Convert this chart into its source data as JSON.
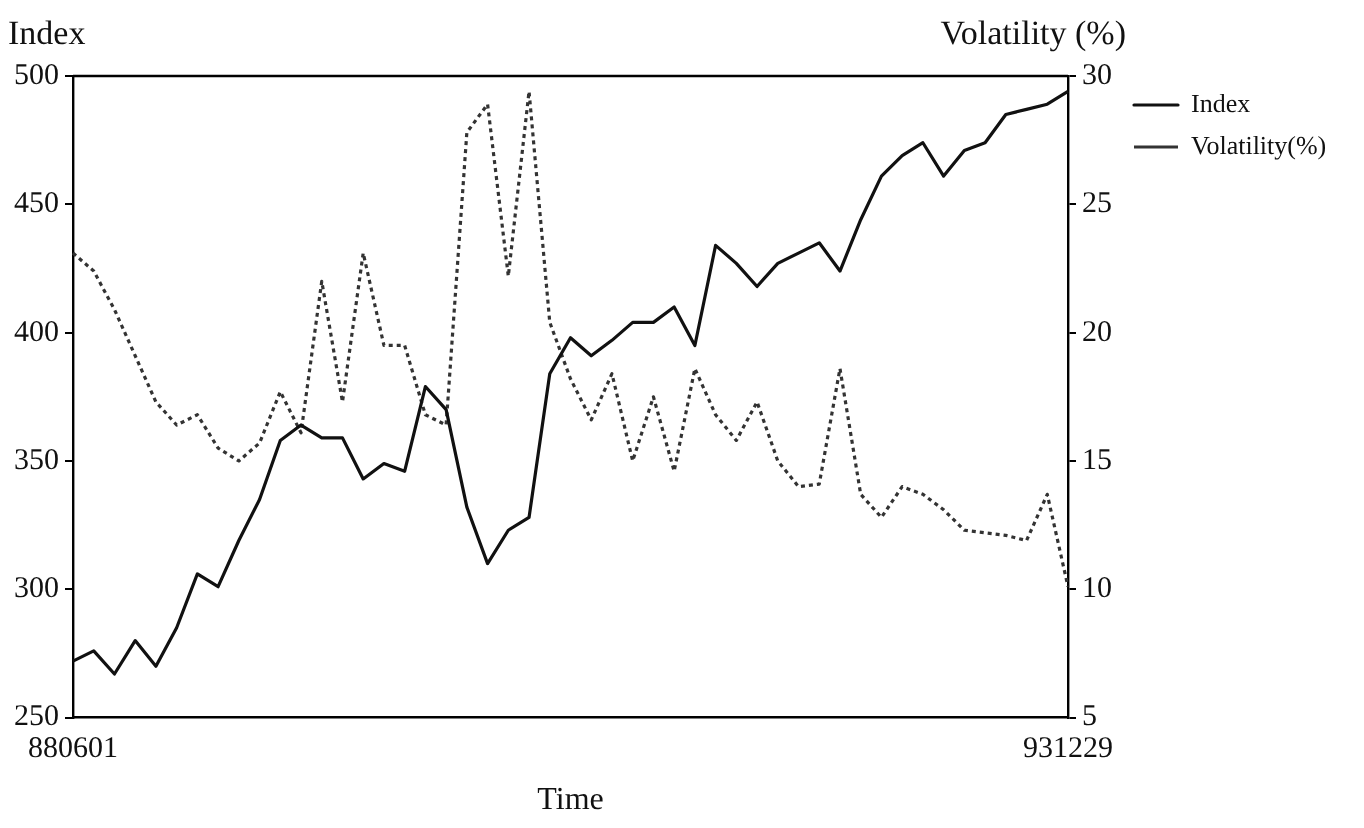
{
  "chart_data": {
    "type": "line",
    "xlabel": "Time",
    "ylabel": "Index",
    "y2label": "Volatility (%)",
    "categories": [
      "880601",
      null,
      null,
      null,
      null,
      null,
      null,
      null,
      null,
      null,
      null,
      null,
      null,
      null,
      null,
      null,
      null,
      null,
      null,
      null,
      null,
      null,
      null,
      null,
      null,
      null,
      null,
      null,
      null,
      null,
      null,
      null,
      null,
      null,
      null,
      null,
      null,
      null,
      null,
      null,
      null,
      null,
      null,
      null,
      null,
      null,
      null,
      null,
      "931229"
    ],
    "ylim": [
      250,
      500
    ],
    "yticks": [
      250,
      300,
      350,
      400,
      450,
      500
    ],
    "y2lim": [
      5,
      30
    ],
    "y2ticks": [
      5,
      10,
      15,
      20,
      25,
      30
    ],
    "grid": false,
    "legend": "right",
    "marker": "none",
    "series": [
      {
        "name": "Index",
        "color": "#111111",
        "line_style": "solid",
        "values": [
          272,
          276,
          267,
          280,
          270,
          285,
          306,
          301,
          319,
          335,
          358,
          364,
          359,
          359,
          343,
          349,
          346,
          379,
          370,
          332,
          310,
          323,
          328,
          384,
          398,
          391,
          397,
          404,
          404,
          410,
          395,
          434,
          427,
          418,
          427,
          431,
          435,
          424,
          444,
          461,
          469,
          474,
          461,
          471,
          474,
          485,
          487,
          489,
          494
        ]
      },
      {
        "name": "Volatility(%)",
        "color": "#333333",
        "line_style": "dotted",
        "axis": "y2",
        "values": [
          23.1,
          22.4,
          20.9,
          19.1,
          17.3,
          16.4,
          16.8,
          15.5,
          15.0,
          15.7,
          17.7,
          16.1,
          22.0,
          17.3,
          23.1,
          19.5,
          19.5,
          16.8,
          16.4,
          27.8,
          28.9,
          22.2,
          29.4,
          20.4,
          18.2,
          16.6,
          18.4,
          15.0,
          17.5,
          14.6,
          18.6,
          16.8,
          15.8,
          17.3,
          15.0,
          14.0,
          14.1,
          18.6,
          13.7,
          12.8,
          14.0,
          13.7,
          13.1,
          12.3,
          12.2,
          12.1,
          11.9,
          13.7,
          10.1
        ]
      }
    ]
  }
}
